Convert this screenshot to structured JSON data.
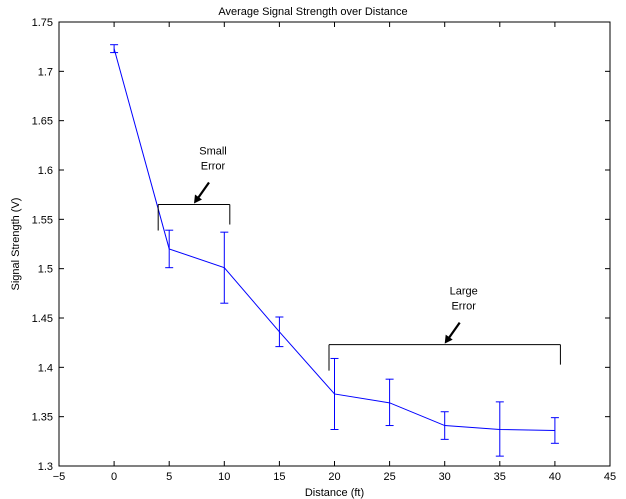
{
  "chart_data": {
    "type": "line",
    "title": "Average Signal Strength over Distance",
    "xlabel": "Distance (ft)",
    "ylabel": "Signal Strength (V)",
    "xlim": [
      -5,
      45
    ],
    "ylim": [
      1.3,
      1.75
    ],
    "xticks": [
      -5,
      0,
      5,
      10,
      15,
      20,
      25,
      30,
      35,
      40,
      45
    ],
    "yticks": [
      1.3,
      1.35,
      1.4,
      1.45,
      1.5,
      1.55,
      1.6,
      1.65,
      1.7,
      1.75
    ],
    "grid": false,
    "series": [
      {
        "color": "#0000ff",
        "x": [
          0,
          5,
          10,
          15,
          20,
          25,
          30,
          35,
          40
        ],
        "y": [
          1.723,
          1.52,
          1.501,
          1.436,
          1.373,
          1.364,
          1.341,
          1.337,
          1.336
        ],
        "err_low": [
          1.719,
          1.501,
          1.465,
          1.421,
          1.337,
          1.341,
          1.327,
          1.31,
          1.323
        ],
        "err_high": [
          1.727,
          1.539,
          1.537,
          1.451,
          1.409,
          1.388,
          1.355,
          1.365,
          1.349
        ]
      }
    ],
    "annotations": [
      {
        "lines": [
          "Small",
          "Error"
        ],
        "bracket": [
          4,
          10.5
        ],
        "bracket_y": 1.565
      },
      {
        "lines": [
          "Large",
          "Error"
        ],
        "bracket": [
          19.5,
          40.5
        ],
        "bracket_y": 1.423
      }
    ]
  }
}
